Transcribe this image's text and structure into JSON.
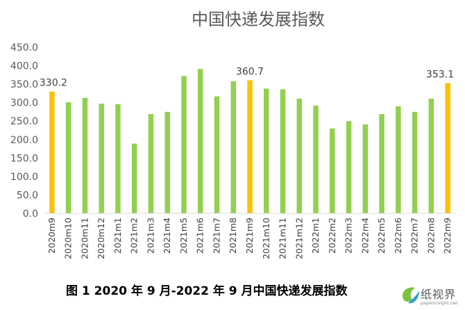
{
  "chart_data": {
    "type": "bar",
    "title": "中国快递发展指数",
    "categories": [
      "2020m9",
      "2020m10",
      "2020m11",
      "2020m12",
      "2021m1",
      "2021m2",
      "2021m3",
      "2021m4",
      "2021m5",
      "2021m6",
      "2021m7",
      "2021m8",
      "2021m9",
      "2021m10",
      "2021m11",
      "2021m12",
      "2022m1",
      "2022m2",
      "2022m3",
      "2022m4",
      "2022m5",
      "2022m6",
      "2022m7",
      "2022m8",
      "2022m9"
    ],
    "values": [
      330.2,
      301,
      313,
      297,
      296,
      189,
      269,
      275,
      372,
      391,
      317,
      358,
      360.7,
      338,
      336,
      311,
      292,
      230,
      250,
      241,
      269,
      290,
      275,
      311,
      353.1
    ],
    "highlighted": [
      0,
      12,
      24
    ],
    "data_labels": {
      "0": "330.2",
      "12": "360.7",
      "24": "353.1"
    },
    "yticks": [
      "0.0",
      "50.0",
      "100.0",
      "150.0",
      "200.0",
      "250.0",
      "300.0",
      "350.0",
      "400.0",
      "450.0"
    ],
    "ylim": [
      0,
      450
    ],
    "xlabel": "",
    "ylabel": "",
    "grid": false,
    "colors": {
      "bar": "#92D050",
      "highlight": "#FFC000",
      "axis": "#D9D9D9",
      "text": "#595959"
    }
  },
  "caption": "图 1 2020 年 9 月-2022 年 9 月中国快递发展指数",
  "watermark": {
    "text": "纸视界",
    "url": "paperinsight.net"
  }
}
